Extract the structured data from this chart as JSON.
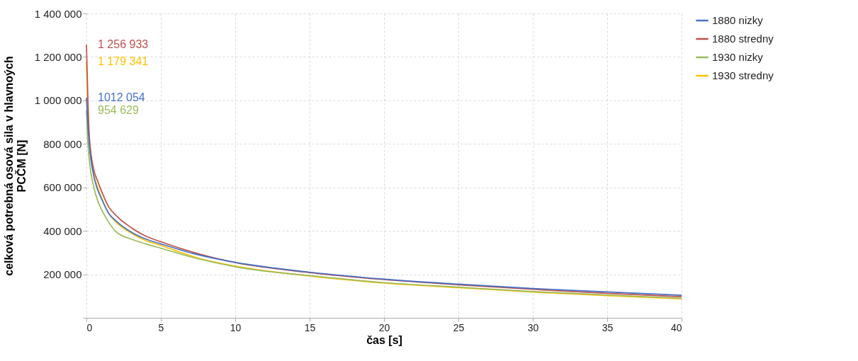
{
  "chart_data": {
    "type": "line",
    "xlabel": "čas [s]",
    "ylabel": "celková potrebná osová sila v hlavnoých PCČM [N]",
    "x": [
      0,
      0.1,
      0.2,
      0.5,
      0.75,
      1,
      1.5,
      2,
      3,
      4,
      5,
      7.5,
      10,
      15,
      20,
      25,
      30,
      35,
      40
    ],
    "series": [
      {
        "name": "1880 nizky",
        "color": "#4472c4",
        "values": [
          1012054,
          880000,
          790000,
          650000,
          590000,
          550000,
          480000,
          445000,
          395000,
          362000,
          340000,
          290000,
          255000,
          210000,
          178000,
          155000,
          135000,
          119000,
          104000
        ],
        "value_labels": [
          "1012 054",
          null,
          null,
          null,
          null,
          null,
          null,
          null,
          null,
          null,
          null,
          null,
          null,
          null,
          null,
          null,
          null,
          null,
          null
        ]
      },
      {
        "name": "1880 stredny",
        "color": "#c0504d",
        "values": [
          1256933,
          1000000,
          830000,
          680000,
          630000,
          585000,
          510000,
          470000,
          415000,
          375000,
          350000,
          295000,
          254000,
          208000,
          176000,
          152000,
          131000,
          113000,
          97000
        ],
        "value_labels": [
          "1 256 933",
          null,
          null,
          null,
          null,
          null,
          null,
          null,
          null,
          null,
          null,
          null,
          null,
          null,
          null,
          null,
          null,
          null,
          null
        ]
      },
      {
        "name": "1930 nizky",
        "color": "#9bbb59",
        "values": [
          954629,
          800000,
          720000,
          600000,
          540000,
          500000,
          440000,
          395000,
          362000,
          340000,
          320000,
          272000,
          235000,
          194000,
          162000,
          141000,
          121000,
          105000,
          90000
        ],
        "value_labels": [
          "954 629",
          null,
          null,
          null,
          null,
          null,
          null,
          null,
          null,
          null,
          null,
          null,
          null,
          null,
          null,
          null,
          null,
          null,
          null
        ]
      },
      {
        "name": "1930 stredny",
        "color": "#ffc000",
        "values": [
          1179341,
          930000,
          810000,
          660000,
          600000,
          555000,
          480000,
          440000,
          390000,
          355000,
          333000,
          275000,
          238000,
          192000,
          160000,
          139000,
          118000,
          102000,
          87000
        ],
        "value_labels": [
          "1 179 341",
          null,
          null,
          null,
          null,
          null,
          null,
          null,
          null,
          null,
          null,
          null,
          null,
          null,
          null,
          null,
          null,
          null,
          null
        ]
      }
    ],
    "xlim": [
      0,
      40
    ],
    "xticks": [
      0,
      5,
      10,
      15,
      20,
      25,
      30,
      35,
      40
    ],
    "ylim": [
      0,
      1400000
    ],
    "yticks": [
      {
        "value": 0,
        "label": null
      },
      {
        "value": 200000,
        "label": "200 000"
      },
      {
        "value": 400000,
        "label": "400 000"
      },
      {
        "value": 600000,
        "label": "600 000"
      },
      {
        "value": 800000,
        "label": "800 000"
      },
      {
        "value": 1000000,
        "label": "1 000 000"
      },
      {
        "value": 1200000,
        "label": "1 200 000"
      },
      {
        "value": 1400000,
        "label": "1 400 000"
      }
    ],
    "grid": true,
    "legend": "right"
  }
}
